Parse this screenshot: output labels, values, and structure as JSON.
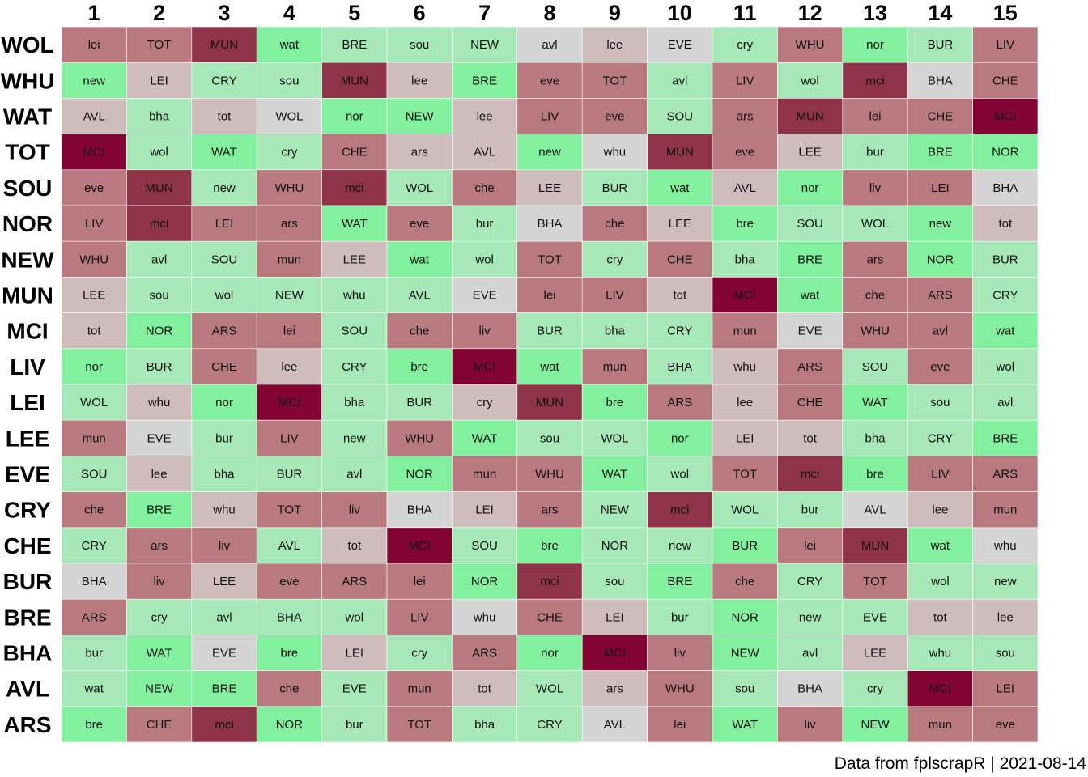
{
  "caption": "Data from fplscrapR | 2021-08-14",
  "colors": {
    "very_easy": "#83f09f",
    "easy": "#a7e8b8",
    "fair": "#c5e0cb",
    "neutral": "#d4d4d4",
    "moderate": "#cfbcbc",
    "hard": "#b87a7f",
    "very_hard": "#8f3448",
    "hardest": "#830433"
  },
  "chart_data": {
    "type": "heatmap",
    "title": "",
    "x_categories": [
      "1",
      "2",
      "3",
      "4",
      "5",
      "6",
      "7",
      "8",
      "9",
      "10",
      "11",
      "12",
      "13",
      "14",
      "15"
    ],
    "y_categories": [
      "WOL",
      "WHU",
      "WAT",
      "TOT",
      "SOU",
      "NOR",
      "NEW",
      "MUN",
      "MCI",
      "LIV",
      "LEI",
      "LEE",
      "EVE",
      "CRY",
      "CHE",
      "BUR",
      "BRE",
      "BHA",
      "AVL",
      "ARS"
    ],
    "cell_labels": [
      [
        "lei",
        "TOT",
        "MUN",
        "wat",
        "BRE",
        "sou",
        "NEW",
        "avl",
        "lee",
        "EVE",
        "cry",
        "WHU",
        "nor",
        "BUR",
        "LIV"
      ],
      [
        "new",
        "LEI",
        "CRY",
        "sou",
        "MUN",
        "lee",
        "BRE",
        "eve",
        "TOT",
        "avl",
        "LIV",
        "wol",
        "mci",
        "BHA",
        "CHE"
      ],
      [
        "AVL",
        "bha",
        "tot",
        "WOL",
        "nor",
        "NEW",
        "lee",
        "LIV",
        "eve",
        "SOU",
        "ars",
        "MUN",
        "lei",
        "CHE",
        "MCI"
      ],
      [
        "MCI",
        "wol",
        "WAT",
        "cry",
        "CHE",
        "ars",
        "AVL",
        "new",
        "whu",
        "MUN",
        "eve",
        "LEE",
        "bur",
        "BRE",
        "NOR"
      ],
      [
        "eve",
        "MUN",
        "new",
        "WHU",
        "mci",
        "WOL",
        "che",
        "LEE",
        "BUR",
        "wat",
        "AVL",
        "nor",
        "liv",
        "LEI",
        "BHA"
      ],
      [
        "LIV",
        "mci",
        "LEI",
        "ars",
        "WAT",
        "eve",
        "bur",
        "BHA",
        "che",
        "LEE",
        "bre",
        "SOU",
        "WOL",
        "new",
        "tot"
      ],
      [
        "WHU",
        "avl",
        "SOU",
        "mun",
        "LEE",
        "wat",
        "wol",
        "TOT",
        "cry",
        "CHE",
        "bha",
        "BRE",
        "ars",
        "NOR",
        "BUR"
      ],
      [
        "LEE",
        "sou",
        "wol",
        "NEW",
        "whu",
        "AVL",
        "EVE",
        "lei",
        "LIV",
        "tot",
        "MCI",
        "wat",
        "che",
        "ARS",
        "CRY"
      ],
      [
        "tot",
        "NOR",
        "ARS",
        "lei",
        "SOU",
        "che",
        "liv",
        "BUR",
        "bha",
        "CRY",
        "mun",
        "EVE",
        "WHU",
        "avl",
        "wat"
      ],
      [
        "nor",
        "BUR",
        "CHE",
        "lee",
        "CRY",
        "bre",
        "MCI",
        "wat",
        "mun",
        "BHA",
        "whu",
        "ARS",
        "SOU",
        "eve",
        "wol"
      ],
      [
        "WOL",
        "whu",
        "nor",
        "MCI",
        "bha",
        "BUR",
        "cry",
        "MUN",
        "bre",
        "ARS",
        "lee",
        "CHE",
        "WAT",
        "sou",
        "avl"
      ],
      [
        "mun",
        "EVE",
        "bur",
        "LIV",
        "new",
        "WHU",
        "WAT",
        "sou",
        "WOL",
        "nor",
        "LEI",
        "tot",
        "bha",
        "CRY",
        "BRE"
      ],
      [
        "SOU",
        "lee",
        "bha",
        "BUR",
        "avl",
        "NOR",
        "mun",
        "WHU",
        "WAT",
        "wol",
        "TOT",
        "mci",
        "bre",
        "LIV",
        "ARS"
      ],
      [
        "che",
        "BRE",
        "whu",
        "TOT",
        "liv",
        "BHA",
        "LEI",
        "ars",
        "NEW",
        "mci",
        "WOL",
        "bur",
        "AVL",
        "lee",
        "mun"
      ],
      [
        "CRY",
        "ars",
        "liv",
        "AVL",
        "tot",
        "MCI",
        "SOU",
        "bre",
        "NOR",
        "new",
        "BUR",
        "lei",
        "MUN",
        "wat",
        "whu"
      ],
      [
        "BHA",
        "liv",
        "LEE",
        "eve",
        "ARS",
        "lei",
        "NOR",
        "mci",
        "sou",
        "BRE",
        "che",
        "CRY",
        "TOT",
        "wol",
        "new"
      ],
      [
        "ARS",
        "cry",
        "avl",
        "BHA",
        "wol",
        "LIV",
        "whu",
        "CHE",
        "LEI",
        "bur",
        "NOR",
        "new",
        "EVE",
        "tot",
        "lee"
      ],
      [
        "bur",
        "WAT",
        "EVE",
        "bre",
        "LEI",
        "cry",
        "ARS",
        "nor",
        "MCI",
        "liv",
        "NEW",
        "avl",
        "LEE",
        "whu",
        "sou"
      ],
      [
        "wat",
        "NEW",
        "BRE",
        "che",
        "EVE",
        "mun",
        "tot",
        "WOL",
        "ars",
        "WHU",
        "sou",
        "BHA",
        "cry",
        "MCI",
        "LEI"
      ],
      [
        "bre",
        "CHE",
        "mci",
        "NOR",
        "bur",
        "TOT",
        "bha",
        "CRY",
        "AVL",
        "lei",
        "WAT",
        "liv",
        "NEW",
        "mun",
        "eve"
      ]
    ],
    "difficulty": [
      [
        5,
        5,
        6,
        1,
        2,
        2,
        2,
        3,
        4,
        3,
        2,
        5,
        1,
        2,
        5
      ],
      [
        1,
        4,
        2,
        2,
        6,
        4,
        1,
        5,
        5,
        2,
        5,
        2,
        6,
        3,
        5
      ],
      [
        4,
        2,
        4,
        3,
        1,
        1,
        4,
        5,
        5,
        2,
        5,
        6,
        5,
        5,
        7
      ],
      [
        7,
        2,
        1,
        2,
        5,
        4,
        4,
        1,
        3,
        6,
        5,
        4,
        2,
        1,
        1
      ],
      [
        5,
        6,
        2,
        5,
        6,
        2,
        5,
        4,
        2,
        1,
        4,
        1,
        5,
        5,
        3
      ],
      [
        5,
        6,
        5,
        5,
        1,
        5,
        2,
        3,
        5,
        4,
        1,
        2,
        2,
        1,
        4
      ],
      [
        5,
        2,
        2,
        5,
        4,
        1,
        2,
        5,
        2,
        5,
        2,
        1,
        5,
        1,
        2
      ],
      [
        4,
        2,
        2,
        2,
        2,
        2,
        3,
        5,
        5,
        4,
        7,
        1,
        5,
        5,
        2
      ],
      [
        4,
        1,
        5,
        5,
        2,
        5,
        5,
        2,
        2,
        2,
        5,
        3,
        5,
        5,
        1
      ],
      [
        1,
        2,
        5,
        4,
        2,
        1,
        7,
        1,
        5,
        2,
        4,
        5,
        2,
        5,
        2
      ],
      [
        2,
        4,
        1,
        7,
        2,
        2,
        4,
        6,
        1,
        5,
        4,
        5,
        1,
        2,
        2
      ],
      [
        5,
        3,
        2,
        5,
        2,
        5,
        1,
        2,
        2,
        1,
        4,
        4,
        2,
        2,
        1
      ],
      [
        2,
        4,
        2,
        2,
        2,
        1,
        5,
        5,
        1,
        2,
        5,
        6,
        1,
        5,
        5
      ],
      [
        5,
        1,
        4,
        5,
        5,
        3,
        4,
        5,
        2,
        6,
        2,
        2,
        3,
        4,
        5
      ],
      [
        2,
        5,
        5,
        2,
        4,
        7,
        2,
        1,
        2,
        2,
        1,
        5,
        6,
        1,
        3
      ],
      [
        3,
        5,
        4,
        5,
        5,
        5,
        1,
        6,
        2,
        1,
        5,
        2,
        5,
        2,
        2
      ],
      [
        5,
        2,
        2,
        2,
        2,
        5,
        3,
        5,
        4,
        2,
        1,
        2,
        2,
        4,
        4
      ],
      [
        2,
        1,
        3,
        1,
        4,
        2,
        5,
        1,
        7,
        5,
        1,
        2,
        4,
        2,
        2
      ],
      [
        2,
        1,
        1,
        5,
        2,
        5,
        4,
        2,
        4,
        5,
        2,
        3,
        2,
        7,
        5
      ],
      [
        1,
        5,
        6,
        1,
        2,
        5,
        2,
        2,
        3,
        5,
        1,
        5,
        1,
        5,
        5
      ]
    ]
  }
}
